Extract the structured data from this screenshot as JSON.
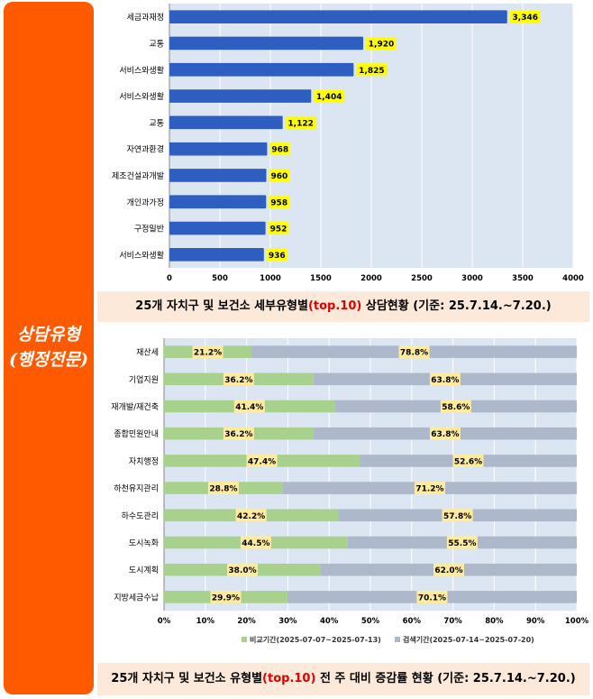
{
  "side_label": "상담유형\n(행정전문)",
  "charts": [
    {
      "type": "bar",
      "orientation": "horizontal",
      "categories": [
        "세금과재정",
        "교통",
        "서비스와생활",
        "서비스와생활",
        "교통",
        "자연과환경",
        "제조건설과개발",
        "개인과가정",
        "구정일반",
        "서비스와생활"
      ],
      "values": [
        3346,
        1920,
        1825,
        1404,
        1122,
        968,
        960,
        958,
        952,
        936
      ],
      "value_labels": [
        "3,346",
        "1,920",
        "1,825",
        "1,404",
        "1,122",
        "968",
        "960",
        "958",
        "952",
        "936"
      ],
      "xlim": [
        0,
        4000
      ],
      "xticks": [
        "0",
        "500",
        "1000",
        "1500",
        "2000",
        "2500",
        "3000",
        "3500",
        "4000"
      ],
      "colors": {
        "bar": "#2e5fc0",
        "label_bg": "#ffff00",
        "plot_bg": "#dce6f2"
      },
      "caption": {
        "pre": "25개 자치구 및 보건소 세부유형별",
        "highlight": "(top.10)",
        "post": " 상담현황  (기준: 25.7.14.~7.20.)"
      }
    },
    {
      "type": "bar",
      "orientation": "horizontal",
      "stacked": true,
      "categories": [
        "재산세",
        "기업지원",
        "재개발/재건축",
        "종합민원안내",
        "자치행정",
        "하천유지관리",
        "하수도관리",
        "도시녹화",
        "도시계획",
        "지방세금수납"
      ],
      "series": [
        {
          "name": "비교기간(2025-07-07~2025-07-13)",
          "values": [
            21.2,
            36.2,
            41.4,
            36.2,
            47.4,
            28.8,
            42.2,
            44.5,
            38.0,
            29.9
          ],
          "labels": [
            "21.2%",
            "36.2%",
            "41.4%",
            "36.2%",
            "47.4%",
            "28.8%",
            "42.2%",
            "44.5%",
            "38.0%",
            "29.9%"
          ],
          "color": "#a9d18e"
        },
        {
          "name": "검색기간(2025-07-14~2025-07-20)",
          "values": [
            78.8,
            63.8,
            58.6,
            63.8,
            52.6,
            71.2,
            57.8,
            55.5,
            62.0,
            70.1
          ],
          "labels": [
            "78.8%",
            "63.8%",
            "58.6%",
            "63.8%",
            "52.6%",
            "71.2%",
            "57.8%",
            "55.5%",
            "62.0%",
            "70.1%"
          ],
          "color": "#adb9ca"
        }
      ],
      "xlim": [
        0,
        100
      ],
      "xticks": [
        "0%",
        "10%",
        "20%",
        "30%",
        "40%",
        "50%",
        "60%",
        "70%",
        "80%",
        "90%",
        "100%"
      ],
      "colors": {
        "label_bg": "#ffeb9c",
        "plot_bg": "#dce6f2"
      },
      "legend_position": "bottom",
      "caption": {
        "pre": "25개 자치구 및 보건소 유형별",
        "highlight": "(top.10)",
        "post": " 전 주 대비 증감률 현황 (기준: 25.7.14.~7.20.)"
      }
    }
  ]
}
